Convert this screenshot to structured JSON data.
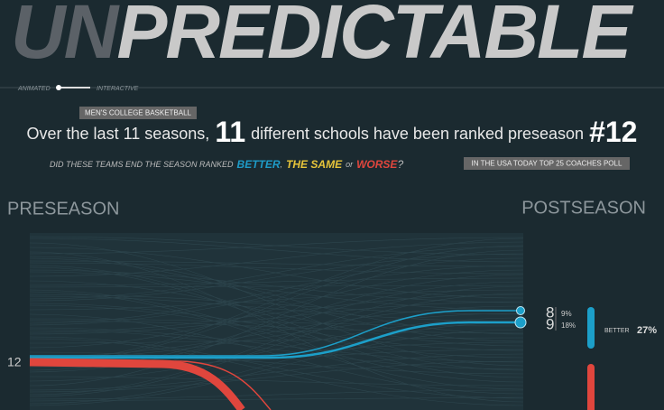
{
  "header": {
    "title_dim": "UN",
    "title_bright": "PREDICTABLE",
    "toggle_left": "ANIMATED",
    "toggle_right": "INTERACTIVE"
  },
  "tag": "MEN'S COLLEGE BASKETBALL",
  "headline": {
    "before": "Over the last 11 seasons,",
    "count": "11",
    "middle": "different schools have been ranked preseason",
    "rank": "#12"
  },
  "question": {
    "before": "DID THESE TEAMS END THE SEASON RANKED",
    "better": "BETTER",
    "comma": ",",
    "same": "THE SAME",
    "or": "or",
    "worse": "WORSE",
    "end": "?"
  },
  "poll": "IN THE USA TODAY TOP 25 COACHES POLL",
  "axis": {
    "left": "PRESEASON",
    "right": "POSTSEASON",
    "start_rank": "12"
  },
  "outcomes": [
    {
      "rank": "8",
      "share": "9%"
    },
    {
      "rank": "9",
      "share": "18%"
    }
  ],
  "summary": {
    "label": "BETTER",
    "share": "27%"
  }
}
